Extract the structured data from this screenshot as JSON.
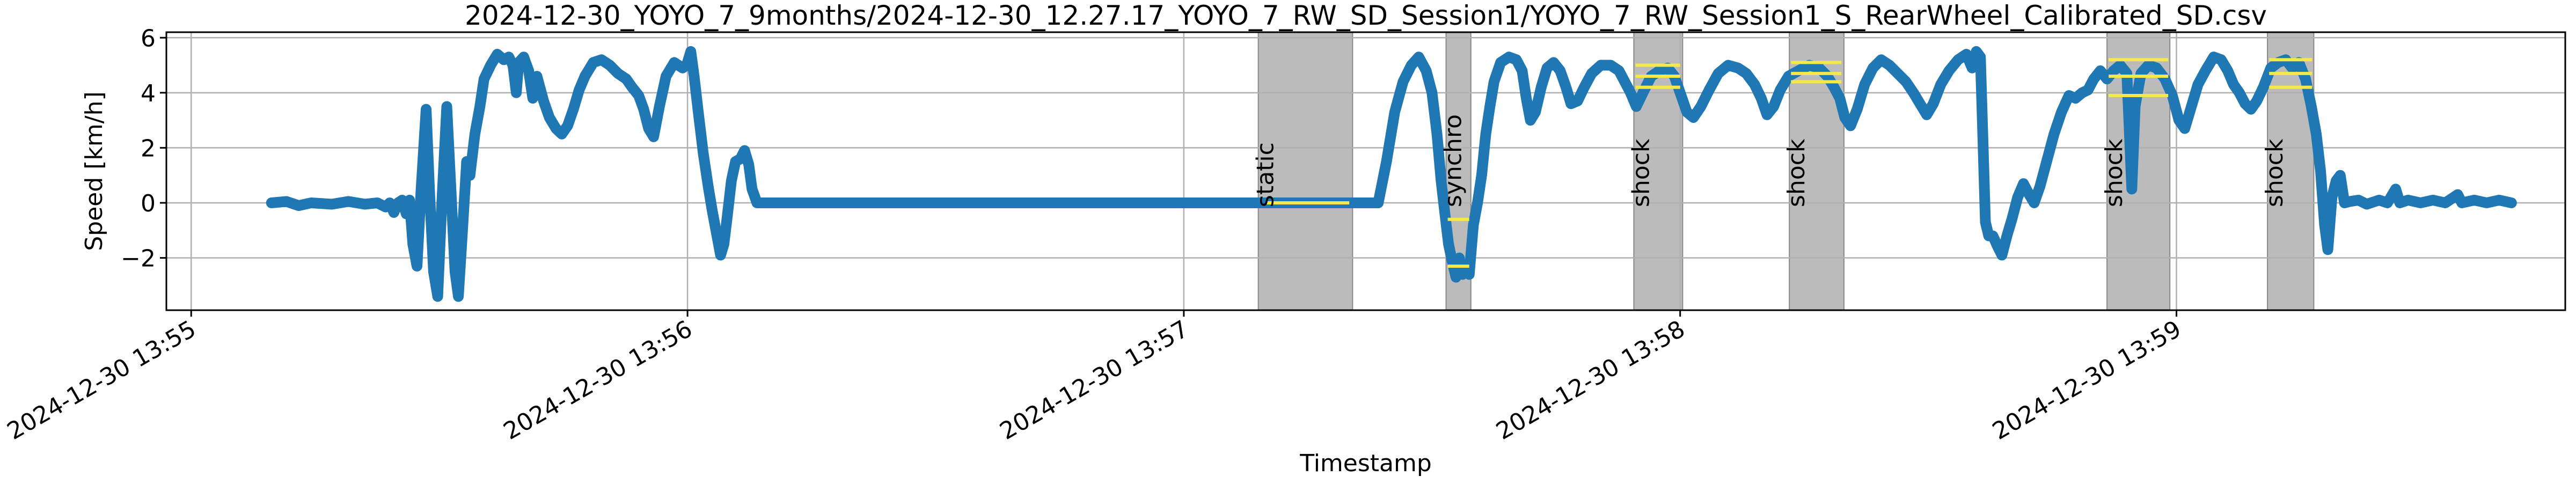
{
  "chart_data": {
    "type": "line",
    "title": "2024-12-30_YOYO_7_9months/2024-12-30_12.27.17_YOYO_7_RW_SD_Session1/YOYO_7_RW_Session1_S_RearWheel_Calibrated_SD.csv",
    "xlabel": "Timestamp",
    "ylabel": "Speed [km/h]",
    "x_unit": "seconds after 2024-12-30 13:55:00",
    "xlim": [
      -3,
      287
    ],
    "ylim": [
      -3.9,
      6.2
    ],
    "grid": true,
    "x_ticks": [
      {
        "t": 0,
        "label": "2024-12-30 13:55"
      },
      {
        "t": 60,
        "label": "2024-12-30 13:56"
      },
      {
        "t": 120,
        "label": "2024-12-30 13:57"
      },
      {
        "t": 180,
        "label": "2024-12-30 13:58"
      },
      {
        "t": 240,
        "label": "2024-12-30 13:59"
      }
    ],
    "y_ticks": [
      {
        "v": -2,
        "label": "−2"
      },
      {
        "v": 0,
        "label": "0"
      },
      {
        "v": 2,
        "label": "2"
      },
      {
        "v": 4,
        "label": "4"
      },
      {
        "v": 6,
        "label": "6"
      }
    ],
    "regions": [
      {
        "label": "static",
        "start": 129.0,
        "end": 140.4,
        "color": "#bbbbbb",
        "lines": [
          {
            "y": 0.0,
            "x0": 130.0,
            "x1": 140.0
          }
        ]
      },
      {
        "label": "synchro",
        "start": 151.7,
        "end": 154.7,
        "color": "#bbbbbb",
        "lines": [
          {
            "y": -0.6,
            "x0": 151.9,
            "x1": 154.5
          },
          {
            "y": -2.3,
            "x0": 151.9,
            "x1": 154.5
          }
        ]
      },
      {
        "label": "shock",
        "start": 174.4,
        "end": 180.3,
        "color": "#bbbbbb",
        "lines": [
          {
            "y": 5.0,
            "x0": 174.6,
            "x1": 180.0
          },
          {
            "y": 4.6,
            "x0": 174.6,
            "x1": 180.0
          },
          {
            "y": 4.2,
            "x0": 174.6,
            "x1": 180.0
          }
        ]
      },
      {
        "label": "shock",
        "start": 193.2,
        "end": 199.8,
        "color": "#bbbbbb",
        "lines": [
          {
            "y": 5.1,
            "x0": 193.4,
            "x1": 199.5
          },
          {
            "y": 4.7,
            "x0": 193.4,
            "x1": 199.5
          },
          {
            "y": 4.4,
            "x0": 193.4,
            "x1": 199.5
          }
        ]
      },
      {
        "label": "shock",
        "start": 231.6,
        "end": 239.2,
        "color": "#bbbbbb",
        "lines": [
          {
            "y": 5.2,
            "x0": 231.8,
            "x1": 239.0
          },
          {
            "y": 4.6,
            "x0": 231.8,
            "x1": 239.0
          },
          {
            "y": 3.9,
            "x0": 231.8,
            "x1": 239.0
          }
        ]
      },
      {
        "label": "shock",
        "start": 251.0,
        "end": 256.6,
        "color": "#bbbbbb",
        "lines": [
          {
            "y": 5.2,
            "x0": 251.2,
            "x1": 256.4
          },
          {
            "y": 4.7,
            "x0": 251.2,
            "x1": 256.4
          },
          {
            "y": 4.2,
            "x0": 251.2,
            "x1": 256.4
          }
        ]
      }
    ],
    "series": [
      {
        "color": "#1f77b4",
        "points": [
          [
            9.7,
            0.0
          ],
          [
            11.5,
            0.05
          ],
          [
            13.0,
            -0.1
          ],
          [
            14.5,
            0.0
          ],
          [
            17.0,
            -0.05
          ],
          [
            19.0,
            0.05
          ],
          [
            21.0,
            -0.05
          ],
          [
            22.5,
            0.0
          ],
          [
            23.5,
            -0.15
          ],
          [
            24.0,
            0.0
          ],
          [
            24.5,
            -0.35
          ],
          [
            25.0,
            0.0
          ],
          [
            25.5,
            0.1
          ],
          [
            26.0,
            -0.4
          ],
          [
            26.4,
            0.1
          ],
          [
            26.8,
            -1.5
          ],
          [
            27.3,
            -2.3
          ],
          [
            27.8,
            0.5
          ],
          [
            28.4,
            3.4
          ],
          [
            28.8,
            0.5
          ],
          [
            29.3,
            -2.5
          ],
          [
            29.8,
            -3.4
          ],
          [
            30.3,
            0.0
          ],
          [
            30.9,
            3.5
          ],
          [
            31.4,
            0.5
          ],
          [
            31.9,
            -2.5
          ],
          [
            32.3,
            -3.4
          ],
          [
            32.8,
            -1.0
          ],
          [
            33.3,
            1.5
          ],
          [
            33.7,
            1.0
          ],
          [
            34.3,
            2.5
          ],
          [
            34.9,
            3.5
          ],
          [
            35.4,
            4.5
          ],
          [
            36.2,
            5.0
          ],
          [
            37.0,
            5.4
          ],
          [
            37.8,
            5.2
          ],
          [
            38.4,
            5.3
          ],
          [
            38.9,
            5.0
          ],
          [
            39.3,
            4.0
          ],
          [
            39.6,
            5.1
          ],
          [
            40.2,
            5.3
          ],
          [
            40.8,
            4.8
          ],
          [
            41.3,
            3.8
          ],
          [
            41.8,
            4.6
          ],
          [
            42.6,
            3.7
          ],
          [
            43.3,
            3.1
          ],
          [
            44.1,
            2.7
          ],
          [
            44.8,
            2.5
          ],
          [
            45.5,
            2.8
          ],
          [
            46.2,
            3.4
          ],
          [
            46.9,
            4.1
          ],
          [
            47.6,
            4.6
          ],
          [
            48.6,
            5.1
          ],
          [
            49.6,
            5.2
          ],
          [
            50.6,
            5.0
          ],
          [
            51.6,
            4.7
          ],
          [
            52.6,
            4.5
          ],
          [
            53.3,
            4.2
          ],
          [
            54.1,
            3.9
          ],
          [
            54.7,
            3.4
          ],
          [
            55.3,
            2.7
          ],
          [
            55.9,
            2.4
          ],
          [
            56.6,
            3.5
          ],
          [
            57.4,
            4.6
          ],
          [
            58.4,
            5.1
          ],
          [
            59.4,
            4.9
          ],
          [
            59.9,
            5.0
          ],
          [
            60.4,
            5.5
          ],
          [
            60.8,
            4.6
          ],
          [
            61.3,
            3.3
          ],
          [
            61.9,
            1.8
          ],
          [
            62.5,
            0.6
          ],
          [
            63.0,
            -0.3
          ],
          [
            63.5,
            -1.1
          ],
          [
            64.0,
            -1.9
          ],
          [
            64.4,
            -1.5
          ],
          [
            64.8,
            -0.5
          ],
          [
            65.3,
            0.8
          ],
          [
            65.8,
            1.5
          ],
          [
            66.4,
            1.6
          ],
          [
            66.9,
            1.9
          ],
          [
            67.4,
            1.4
          ],
          [
            67.8,
            0.5
          ],
          [
            68.4,
            0.0
          ],
          [
            69.5,
            0.0
          ],
          [
            128.0,
            0.0
          ],
          [
            140.0,
            0.0
          ],
          [
            143.5,
            0.0
          ],
          [
            144.5,
            1.5
          ],
          [
            145.5,
            3.3
          ],
          [
            146.5,
            4.4
          ],
          [
            147.5,
            5.0
          ],
          [
            148.4,
            5.3
          ],
          [
            149.3,
            4.8
          ],
          [
            150.0,
            4.0
          ],
          [
            150.6,
            2.5
          ],
          [
            151.1,
            0.8
          ],
          [
            151.6,
            -0.5
          ],
          [
            152.0,
            -1.5
          ],
          [
            152.5,
            -2.2
          ],
          [
            152.9,
            -2.7
          ],
          [
            153.3,
            -2.0
          ],
          [
            153.7,
            -2.6
          ],
          [
            154.1,
            -2.4
          ],
          [
            154.5,
            -2.6
          ],
          [
            155.0,
            -0.8
          ],
          [
            155.5,
            0.0
          ],
          [
            156.0,
            1.0
          ],
          [
            156.5,
            2.5
          ],
          [
            157.0,
            3.5
          ],
          [
            157.5,
            4.4
          ],
          [
            158.3,
            5.1
          ],
          [
            159.3,
            5.3
          ],
          [
            160.2,
            5.2
          ],
          [
            160.9,
            4.8
          ],
          [
            161.4,
            3.8
          ],
          [
            161.9,
            3.0
          ],
          [
            162.5,
            3.3
          ],
          [
            163.2,
            4.2
          ],
          [
            163.9,
            4.9
          ],
          [
            164.7,
            5.1
          ],
          [
            165.5,
            4.8
          ],
          [
            166.2,
            4.2
          ],
          [
            166.8,
            3.6
          ],
          [
            167.6,
            3.7
          ],
          [
            168.4,
            4.2
          ],
          [
            169.3,
            4.7
          ],
          [
            170.4,
            5.0
          ],
          [
            171.6,
            5.0
          ],
          [
            172.6,
            4.8
          ],
          [
            173.3,
            4.4
          ],
          [
            174.0,
            4.0
          ],
          [
            174.7,
            3.5
          ],
          [
            175.5,
            4.0
          ],
          [
            176.5,
            4.6
          ],
          [
            177.5,
            4.8
          ],
          [
            178.5,
            4.9
          ],
          [
            179.3,
            4.6
          ],
          [
            180.0,
            4.0
          ],
          [
            180.8,
            3.3
          ],
          [
            181.6,
            3.1
          ],
          [
            182.5,
            3.5
          ],
          [
            183.5,
            4.1
          ],
          [
            184.6,
            4.7
          ],
          [
            185.8,
            5.0
          ],
          [
            187.0,
            4.9
          ],
          [
            188.0,
            4.7
          ],
          [
            189.0,
            4.3
          ],
          [
            189.8,
            3.8
          ],
          [
            190.5,
            3.2
          ],
          [
            191.3,
            3.5
          ],
          [
            192.1,
            4.1
          ],
          [
            193.1,
            4.6
          ],
          [
            194.3,
            4.8
          ],
          [
            195.6,
            5.0
          ],
          [
            196.8,
            4.9
          ],
          [
            197.8,
            4.6
          ],
          [
            198.6,
            4.2
          ],
          [
            199.3,
            3.8
          ],
          [
            199.9,
            3.1
          ],
          [
            200.6,
            2.8
          ],
          [
            201.4,
            3.4
          ],
          [
            202.3,
            4.3
          ],
          [
            203.3,
            4.9
          ],
          [
            204.3,
            5.2
          ],
          [
            205.3,
            5.0
          ],
          [
            206.3,
            4.7
          ],
          [
            207.3,
            4.4
          ],
          [
            208.2,
            4.0
          ],
          [
            209.0,
            3.6
          ],
          [
            209.8,
            3.2
          ],
          [
            210.6,
            3.6
          ],
          [
            211.5,
            4.3
          ],
          [
            212.5,
            4.8
          ],
          [
            213.6,
            5.2
          ],
          [
            214.6,
            5.4
          ],
          [
            215.3,
            4.9
          ],
          [
            215.8,
            5.5
          ],
          [
            216.3,
            5.3
          ],
          [
            216.6,
            2.3
          ],
          [
            216.9,
            -0.7
          ],
          [
            217.3,
            -1.2
          ],
          [
            217.8,
            -1.2
          ],
          [
            218.4,
            -1.6
          ],
          [
            218.9,
            -1.9
          ],
          [
            219.5,
            -1.2
          ],
          [
            220.1,
            -0.6
          ],
          [
            220.8,
            0.2
          ],
          [
            221.5,
            0.7
          ],
          [
            222.2,
            0.3
          ],
          [
            222.8,
            0.0
          ],
          [
            223.5,
            0.6
          ],
          [
            224.3,
            1.5
          ],
          [
            225.2,
            2.5
          ],
          [
            226.1,
            3.3
          ],
          [
            227.0,
            3.9
          ],
          [
            227.8,
            3.8
          ],
          [
            228.6,
            4.0
          ],
          [
            229.3,
            4.1
          ],
          [
            230.0,
            4.5
          ],
          [
            230.8,
            4.8
          ],
          [
            231.6,
            4.5
          ],
          [
            232.4,
            4.8
          ],
          [
            233.2,
            5.0
          ],
          [
            234.0,
            4.7
          ],
          [
            234.6,
            0.5
          ],
          [
            235.0,
            3.5
          ],
          [
            235.7,
            4.7
          ],
          [
            236.6,
            5.0
          ],
          [
            237.6,
            4.9
          ],
          [
            238.6,
            4.5
          ],
          [
            239.5,
            3.9
          ],
          [
            240.3,
            3.0
          ],
          [
            241.0,
            2.7
          ],
          [
            241.8,
            3.5
          ],
          [
            242.6,
            4.3
          ],
          [
            243.5,
            4.8
          ],
          [
            244.5,
            5.3
          ],
          [
            245.4,
            5.2
          ],
          [
            246.2,
            4.8
          ],
          [
            246.9,
            4.3
          ],
          [
            247.6,
            4.0
          ],
          [
            248.3,
            3.6
          ],
          [
            249.0,
            3.4
          ],
          [
            249.7,
            3.7
          ],
          [
            250.5,
            4.2
          ],
          [
            251.4,
            4.9
          ],
          [
            252.3,
            5.1
          ],
          [
            253.2,
            5.2
          ],
          [
            254.0,
            4.9
          ],
          [
            254.8,
            5.1
          ],
          [
            255.6,
            4.5
          ],
          [
            256.3,
            3.5
          ],
          [
            256.9,
            2.5
          ],
          [
            257.4,
            1.2
          ],
          [
            257.9,
            -0.8
          ],
          [
            258.3,
            -1.7
          ],
          [
            258.8,
            0.2
          ],
          [
            259.3,
            0.8
          ],
          [
            259.8,
            1.0
          ],
          [
            260.3,
            0.0
          ],
          [
            261.0,
            0.05
          ],
          [
            262.0,
            0.1
          ],
          [
            263.0,
            -0.05
          ],
          [
            264.5,
            0.1
          ],
          [
            265.5,
            0.0
          ],
          [
            266.5,
            0.5
          ],
          [
            267.0,
            0.0
          ],
          [
            268.0,
            0.1
          ],
          [
            269.5,
            0.0
          ],
          [
            271.0,
            0.1
          ],
          [
            272.5,
            0.0
          ],
          [
            274.0,
            0.3
          ],
          [
            274.5,
            0.0
          ],
          [
            276.0,
            0.1
          ],
          [
            277.5,
            0.0
          ],
          [
            279.0,
            0.1
          ],
          [
            280.5,
            0.0
          ]
        ]
      }
    ]
  }
}
